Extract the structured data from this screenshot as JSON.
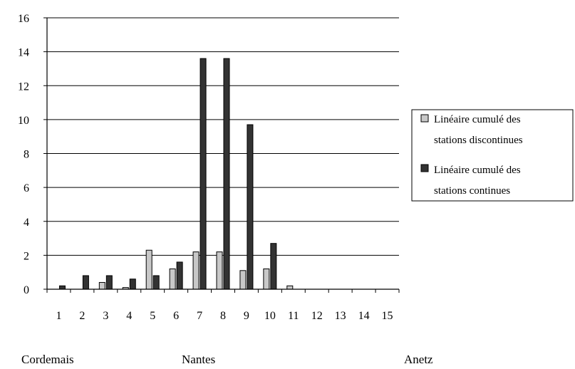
{
  "chart_data": {
    "type": "bar",
    "title": "",
    "xlabel": "",
    "ylabel": "",
    "categories": [
      "1",
      "2",
      "3",
      "4",
      "5",
      "6",
      "7",
      "8",
      "9",
      "10",
      "11",
      "12",
      "13",
      "14",
      "15"
    ],
    "ylim": [
      0,
      16
    ],
    "yticks": [
      0,
      2,
      4,
      6,
      8,
      10,
      12,
      14,
      16
    ],
    "grid": true,
    "legend_position": "right",
    "series": [
      {
        "name": "Linéaire cumulé des stations discontinues",
        "legend_lines": [
          "Linéaire cumulé des",
          "stations discontinues"
        ],
        "color": "#c8c8c8",
        "values": [
          0,
          0,
          0.4,
          0.1,
          2.3,
          1.2,
          2.2,
          2.2,
          1.1,
          1.2,
          0.2,
          0,
          0,
          0,
          0
        ]
      },
      {
        "name": "Linéaire cumulé des stations continues",
        "legend_lines": [
          "Linéaire cumulé des",
          "stations continues"
        ],
        "color": "#333333",
        "values": [
          0.2,
          0.8,
          0.8,
          0.6,
          0.8,
          1.6,
          13.6,
          13.6,
          9.7,
          2.7,
          0,
          0,
          0,
          0,
          0
        ]
      }
    ],
    "annotations": [
      "Cordemais",
      "Nantes",
      "Anetz"
    ]
  }
}
